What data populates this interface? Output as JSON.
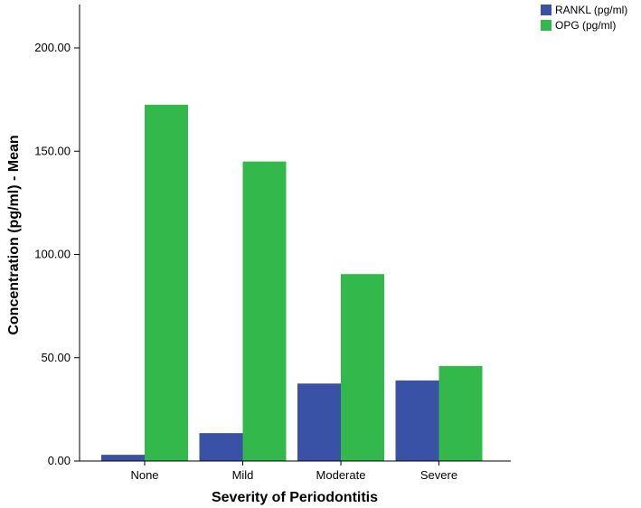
{
  "chart_data": {
    "type": "bar",
    "title": "",
    "xlabel": "Severity of Periodontitis",
    "ylabel": "Concentration (pg/ml) - Mean",
    "categories": [
      "None",
      "Mild",
      "Moderate",
      "Severe"
    ],
    "series": [
      {
        "name": "RANKL (pg/ml)",
        "color": "#3a52a6",
        "values": [
          3,
          13.5,
          37.5,
          39
        ]
      },
      {
        "name": "OPG (pg/ml)",
        "color": "#33b84c",
        "values": [
          172.5,
          145,
          90.5,
          46
        ]
      }
    ],
    "ylim": [
      0,
      225
    ],
    "yticks": [
      0,
      50,
      100,
      150,
      200
    ],
    "ytick_labels": [
      "0.00",
      "50.00",
      "100.00",
      "150.00",
      "200.00"
    ],
    "grid": false,
    "legend_position": "top-right"
  }
}
